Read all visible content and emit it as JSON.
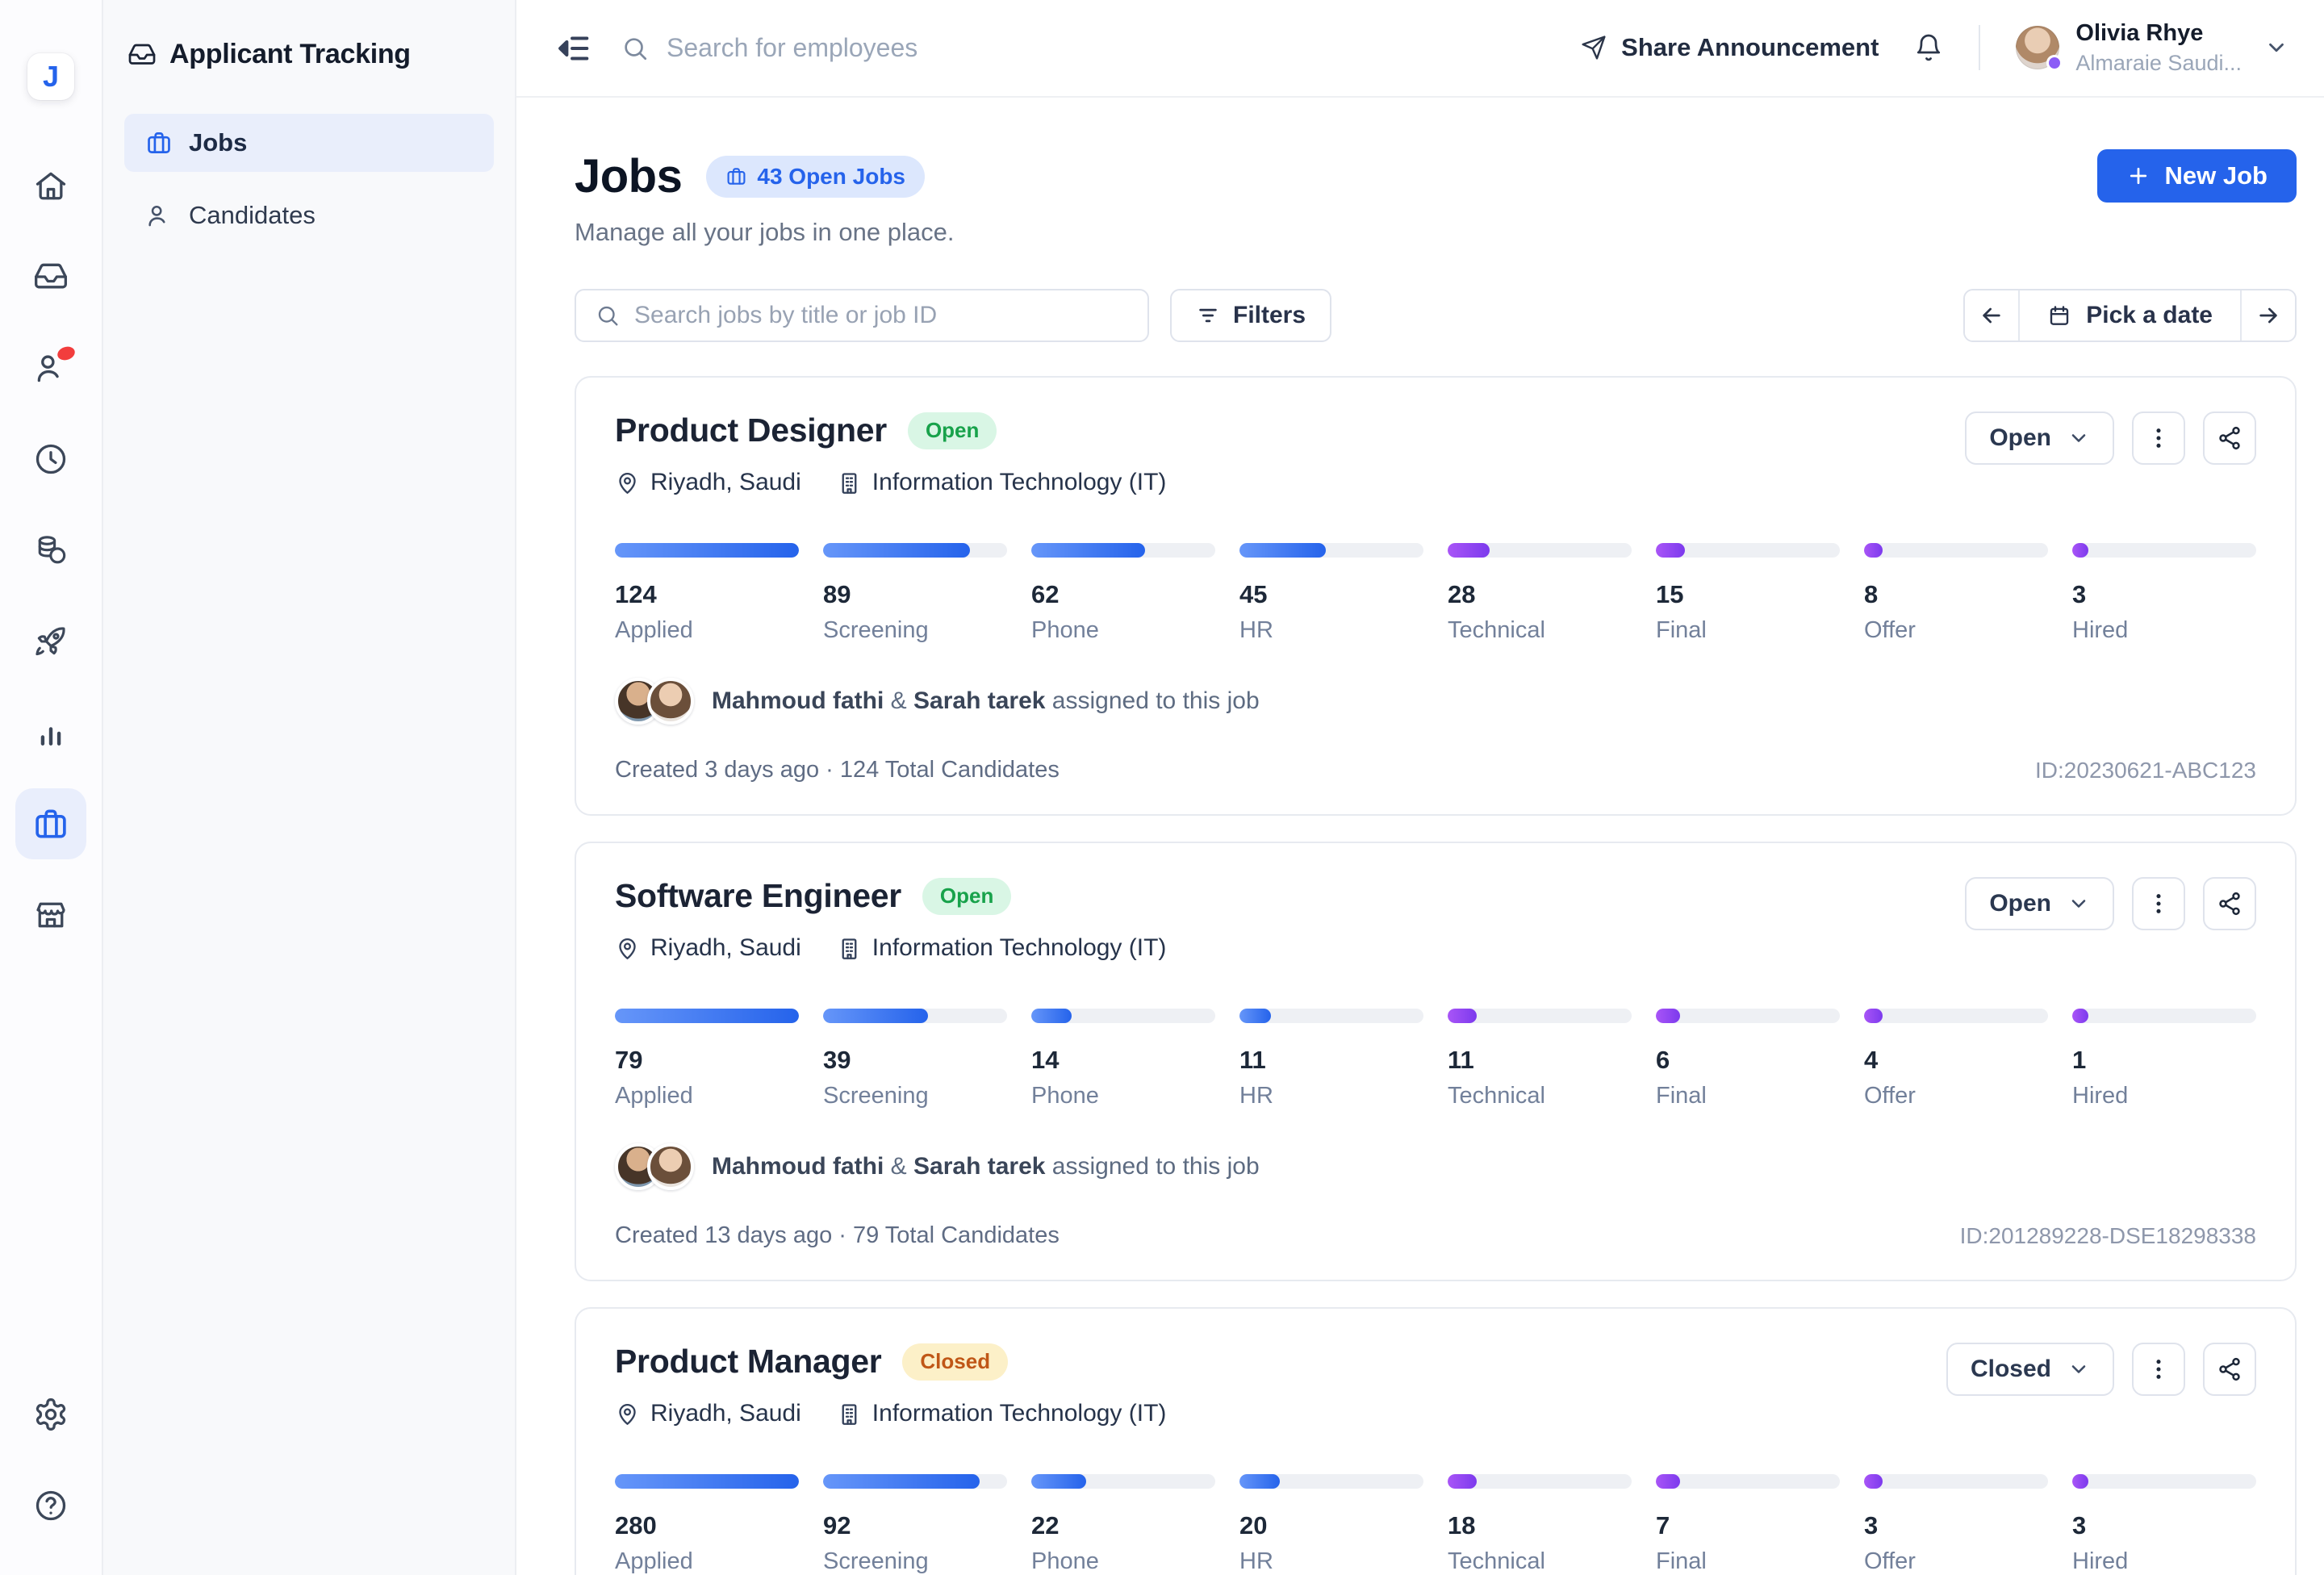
{
  "colors": {
    "accent": "#2563eb",
    "accent_light_bg": "#dce7fd",
    "bar_blue_from": "#6696f9",
    "bar_blue_to": "#2563eb",
    "bar_purple_from": "#a955f7",
    "bar_purple_to": "#7c3aed",
    "track": "#eef0f4",
    "open_badge_bg": "#d9f6e5",
    "open_badge_text": "#18a24b",
    "closed_badge_bg": "#fcf0c8",
    "closed_badge_text": "#c05717",
    "danger_dot": "#f23d3d"
  },
  "brand": {
    "logo_letter": "J",
    "app_title": "Applicant Tracking"
  },
  "rail_icons": [
    "home-icon",
    "inbox-icon",
    "candidates-icon (red notification dot)",
    "clock-icon",
    "coins-icon",
    "rocket-icon",
    "bar-chart-icon",
    "briefcase-icon (active)",
    "storefront-icon",
    "settings-gear-icon",
    "help-circle-icon"
  ],
  "sidebar": {
    "items": [
      {
        "label": "Jobs",
        "icon": "briefcase-icon",
        "active": true
      },
      {
        "label": "Candidates",
        "icon": "people-icon",
        "active": false
      }
    ]
  },
  "topbar": {
    "search_placeholder": "Search for employees",
    "share_label": "Share Announcement",
    "user": {
      "name": "Olivia Rhye",
      "org": "Almaraie Saudi..."
    }
  },
  "page": {
    "title": "Jobs",
    "open_jobs_badge": "43 Open Jobs",
    "subtitle": "Manage all your jobs in one place.",
    "new_job_label": "New Job",
    "search_placeholder": "Search jobs by title or job ID",
    "filters_label": "Filters",
    "pick_date_label": "Pick a date"
  },
  "stages": [
    "Applied",
    "Screening",
    "Phone",
    "HR",
    "Technical",
    "Final",
    "Offer",
    "Hired"
  ],
  "jobs": [
    {
      "title": "Product Designer",
      "status": "Open",
      "status_key": "open",
      "action_label": "Open",
      "location": "Riyadh, Saudi",
      "department": "Information Technology (IT)",
      "values": [
        124,
        89,
        62,
        45,
        28,
        15,
        8,
        3
      ],
      "fills": [
        100,
        80,
        62,
        47,
        23,
        16,
        10,
        6
      ],
      "assigned": {
        "name1": "Mahmoud fathi",
        "amp": "&",
        "name2": "Sarah tarek",
        "suffix": "assigned to this job"
      },
      "created_line": "Created 3 days ago · 124 Total Candidates",
      "job_id": "ID:20230621-ABC123"
    },
    {
      "title": "Software Engineer",
      "status": "Open",
      "status_key": "open",
      "action_label": "Open",
      "location": "Riyadh, Saudi",
      "department": "Information Technology (IT)",
      "values": [
        79,
        39,
        14,
        11,
        11,
        6,
        4,
        1
      ],
      "fills": [
        100,
        57,
        22,
        17,
        16,
        13,
        10,
        4
      ],
      "assigned": {
        "name1": "Mahmoud fathi",
        "amp": "&",
        "name2": "Sarah tarek",
        "suffix": "assigned to this job"
      },
      "created_line": "Created 13 days ago · 79 Total Candidates",
      "job_id": "ID:201289228-DSE18298338"
    },
    {
      "title": "Product Manager",
      "status": "Closed",
      "status_key": "closed",
      "action_label": "Closed",
      "location": "Riyadh, Saudi",
      "department": "Information Technology (IT)",
      "values": [
        280,
        92,
        22,
        20,
        18,
        7,
        3,
        3
      ],
      "fills": [
        100,
        85,
        30,
        22,
        16,
        13,
        10,
        6
      ],
      "assigned": {
        "name1": "Mahmoud fathi",
        "amp": "&",
        "name2": "Sarah tarek",
        "suffix": "assigned to this job"
      },
      "created_line": "",
      "job_id": ""
    }
  ]
}
